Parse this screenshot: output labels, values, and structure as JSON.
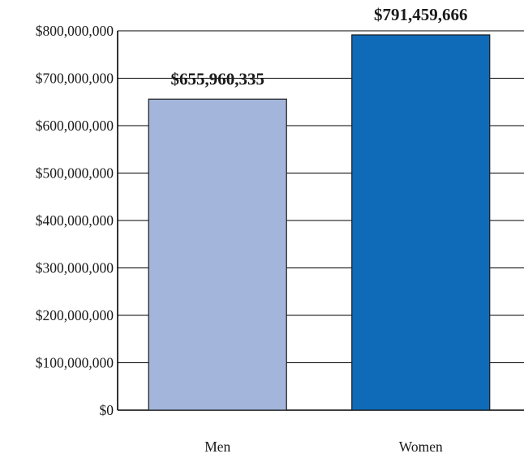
{
  "chart_data": {
    "type": "bar",
    "title": "",
    "xlabel": "",
    "ylabel": "",
    "categories": [
      "Men",
      "Women"
    ],
    "values": [
      655960335,
      791459666
    ],
    "data_labels": [
      "$655,960,335",
      "$791,459,666"
    ],
    "colors": [
      "#a3b5db",
      "#0f6bb7"
    ],
    "ylim": [
      0,
      800000000
    ],
    "y_ticks": [
      0,
      100000000,
      200000000,
      300000000,
      400000000,
      500000000,
      600000000,
      700000000,
      800000000
    ],
    "y_tick_labels": [
      "$0",
      "$100,000,000",
      "$200,000,000",
      "$300,000,000",
      "$400,000,000",
      "$500,000,000",
      "$600,000,000",
      "$700,000,000",
      "$800,000,000"
    ],
    "grid": true,
    "legend": "none"
  }
}
